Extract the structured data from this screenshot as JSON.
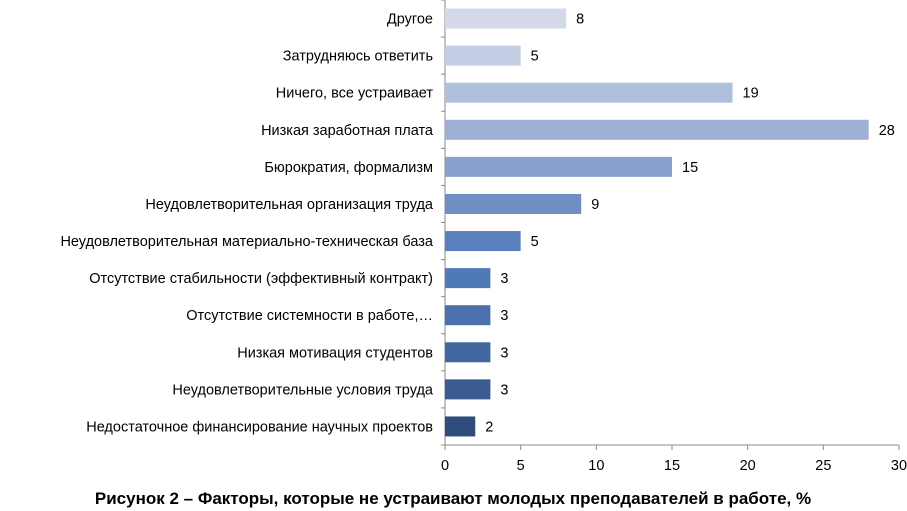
{
  "chart_data": {
    "type": "bar",
    "orientation": "horizontal",
    "title": "Рисунок 2 – Факторы, которые не устраивают молодых преподавателей в работе, %",
    "categories": [
      "Другое",
      "Затрудняюсь ответить",
      "Ничего, все устраивает",
      "Низкая заработная плата",
      "Бюрократия, формализм",
      "Неудовлетворительная организация труда",
      "Неудовлетворительная материально-техническая база",
      "Отсутствие стабильности (эффективный контракт)",
      "Отсутствие системности в работе,…",
      "Низкая мотивация студентов",
      "Неудовлетворительные условия труда",
      "Недостаточное финансирование научных проектов"
    ],
    "values": [
      8,
      5,
      19,
      28,
      15,
      9,
      5,
      3,
      3,
      3,
      3,
      2
    ],
    "colors": [
      "#d3d9e9",
      "#c3cde3",
      "#b0bfdc",
      "#9eb1d5",
      "#87a0cc",
      "#6e8ec4",
      "#5b80bf",
      "#5079b8",
      "#4a71ad",
      "#42669e",
      "#3a5c90",
      "#2f4d7a"
    ],
    "xlabel": "",
    "ylabel": "",
    "xlim": [
      0,
      30
    ],
    "xticks": [
      "0",
      "5",
      "10",
      "15",
      "20",
      "25",
      "30"
    ],
    "grid": false,
    "legend": "none"
  }
}
